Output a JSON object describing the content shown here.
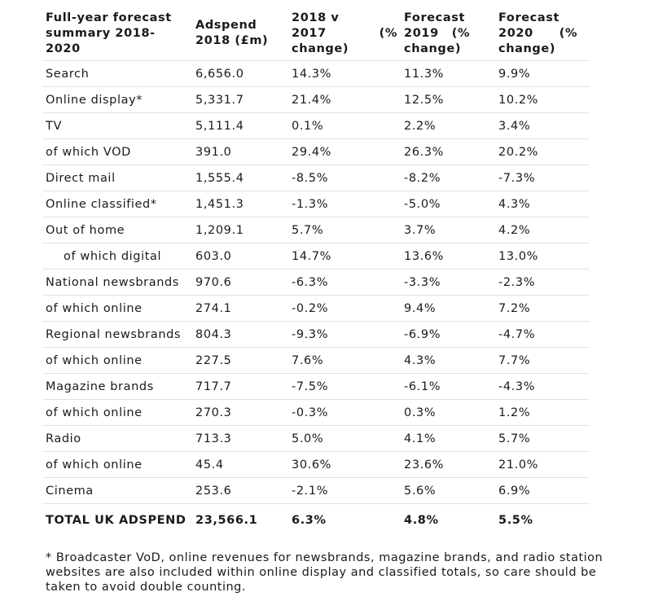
{
  "headers": {
    "category": "Full-year forecast summary 2018-2020",
    "adspend": "Adspend 2018 (£m)",
    "change_2018_line1": "2018 v",
    "change_2018_line2": "2017",
    "change_2018_pct": "(%",
    "change_2018_line3": "change)",
    "forecast_2019_line1": "Forecast",
    "forecast_2019_line2": "2019",
    "forecast_2019_pct": "(%",
    "forecast_2019_line3": "change)",
    "forecast_2020_line1": "Forecast",
    "forecast_2020_line2": "2020",
    "forecast_2020_pct": "(%",
    "forecast_2020_line3": "change)"
  },
  "rows": [
    {
      "label": "Search",
      "adspend": "6,656.0",
      "change_2018": "14.3%",
      "forecast_2019": "11.3%",
      "forecast_2020": "9.9%"
    },
    {
      "label": "Online display*",
      "adspend": "5,331.7",
      "change_2018": "21.4%",
      "forecast_2019": "12.5%",
      "forecast_2020": "10.2%"
    },
    {
      "label": "TV",
      "adspend": "5,111.4",
      "change_2018": "0.1%",
      "forecast_2019": "2.2%",
      "forecast_2020": "3.4%"
    },
    {
      "label": "of which VOD",
      "adspend": "391.0",
      "change_2018": "29.4%",
      "forecast_2019": "26.3%",
      "forecast_2020": "20.2%"
    },
    {
      "label": "Direct mail",
      "adspend": "1,555.4",
      "change_2018": "-8.5%",
      "forecast_2019": "-8.2%",
      "forecast_2020": "-7.3%"
    },
    {
      "label": "Online classified*",
      "adspend": "1,451.3",
      "change_2018": "-1.3%",
      "forecast_2019": "-5.0%",
      "forecast_2020": "4.3%"
    },
    {
      "label": "Out of home",
      "adspend": "1,209.1",
      "change_2018": "5.7%",
      "forecast_2019": "3.7%",
      "forecast_2020": "4.2%"
    },
    {
      "label": "of which digital",
      "adspend": "603.0",
      "change_2018": "14.7%",
      "forecast_2019": "13.6%",
      "forecast_2020": "13.0%"
    },
    {
      "label": "National newsbrands",
      "adspend": "970.6",
      "change_2018": "-6.3%",
      "forecast_2019": "-3.3%",
      "forecast_2020": "-2.3%"
    },
    {
      "label": "of which online",
      "adspend": "274.1",
      "change_2018": "-0.2%",
      "forecast_2019": "9.4%",
      "forecast_2020": "7.2%"
    },
    {
      "label": "Regional newsbrands",
      "adspend": "804.3",
      "change_2018": "-9.3%",
      "forecast_2019": "-6.9%",
      "forecast_2020": "-4.7%"
    },
    {
      "label": "of which online",
      "adspend": "227.5",
      "change_2018": "7.6%",
      "forecast_2019": "4.3%",
      "forecast_2020": "7.7%"
    },
    {
      "label": "Magazine brands",
      "adspend": "717.7",
      "change_2018": "-7.5%",
      "forecast_2019": "-6.1%",
      "forecast_2020": "-4.3%"
    },
    {
      "label": "of which online",
      "adspend": "270.3",
      "change_2018": "-0.3%",
      "forecast_2019": "0.3%",
      "forecast_2020": "1.2%"
    },
    {
      "label": "Radio",
      "adspend": "713.3",
      "change_2018": "5.0%",
      "forecast_2019": "4.1%",
      "forecast_2020": "5.7%"
    },
    {
      "label": "of which online",
      "adspend": "45.4",
      "change_2018": "30.6%",
      "forecast_2019": "23.6%",
      "forecast_2020": "21.0%"
    },
    {
      "label": "Cinema",
      "adspend": "253.6",
      "change_2018": "-2.1%",
      "forecast_2019": "5.6%",
      "forecast_2020": "6.9%"
    }
  ],
  "total": {
    "label": "TOTAL UK ADSPEND",
    "adspend": "23,566.1",
    "change_2018": "6.3%",
    "forecast_2019": "4.8%",
    "forecast_2020": "5.5%"
  },
  "footnote": "* Broadcaster VoD, online revenues for newsbrands, magazine brands, and radio station websites are also included within online display and classified totals, so care should be taken to avoid double counting."
}
